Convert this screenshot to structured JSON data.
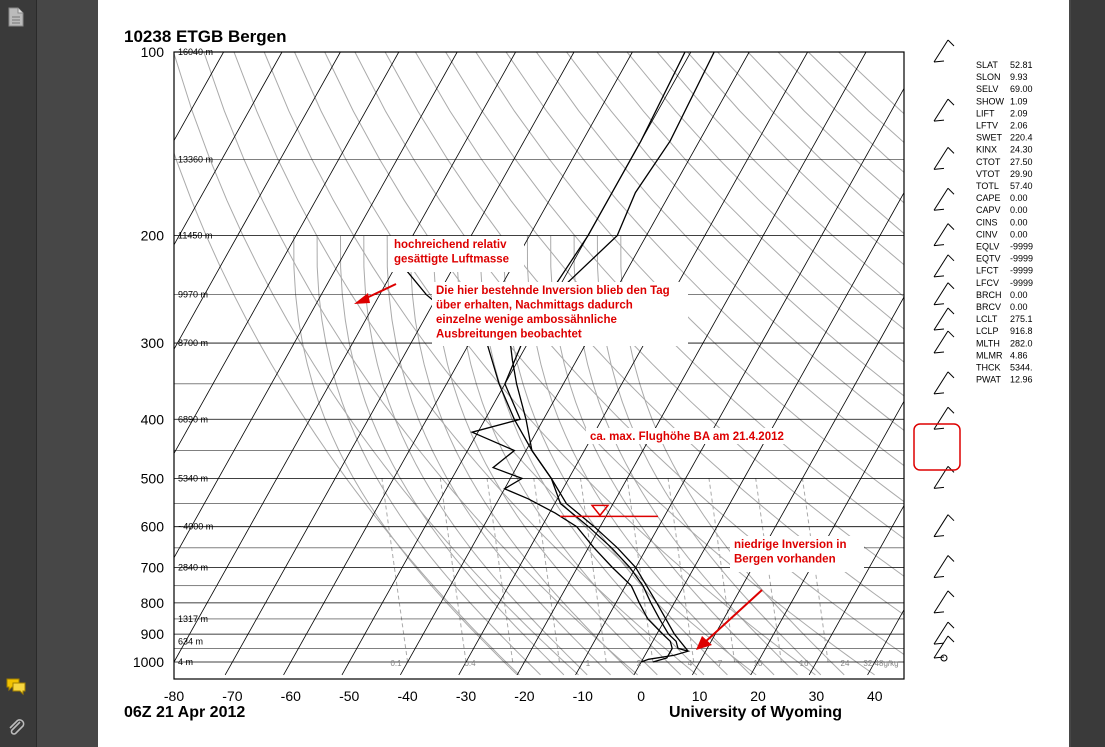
{
  "sidebar": {
    "icons": [
      "document-icon",
      "comments-icon",
      "attachment-icon"
    ]
  },
  "chart_data": {
    "type": "line",
    "title": "10238 ETGB Bergen",
    "date_label": "06Z 21 Apr 2012",
    "credit": "University of Wyoming",
    "xlim": [
      -80,
      45
    ],
    "x_ticks": [
      -80,
      -70,
      -60,
      -50,
      -40,
      -30,
      -20,
      -10,
      0,
      10,
      20,
      30,
      40
    ],
    "pressure_ticks": [
      100,
      200,
      300,
      400,
      500,
      600,
      700,
      800,
      900,
      1000
    ],
    "heights": [
      {
        "p": 100,
        "label": "16040 m"
      },
      {
        "p": 150,
        "label": "13360 m"
      },
      {
        "p": 200,
        "label": "11450 m"
      },
      {
        "p": 250,
        "label": "9970 m"
      },
      {
        "p": 300,
        "label": "8700 m"
      },
      {
        "p": 400,
        "label": "6890 m"
      },
      {
        "p": 500,
        "label": "5340 m"
      },
      {
        "p": 600,
        "label": "~4000 m"
      },
      {
        "p": 700,
        "label": "2840 m"
      },
      {
        "p": 850,
        "label": "1317 m"
      },
      {
        "p": 925,
        "label": "634 m"
      },
      {
        "p": 1000,
        "label": "4 m"
      }
    ],
    "mixing_labels": [
      "0.1",
      "0.4",
      "1",
      "2",
      "4",
      "7",
      "10",
      "16",
      "24",
      "32 48g/kg"
    ],
    "series": [
      {
        "label": "T",
        "points": [
          [
            100,
            -46
          ],
          [
            140,
            -45
          ],
          [
            170,
            -46
          ],
          [
            200,
            -45
          ],
          [
            250,
            -50
          ],
          [
            280,
            -52
          ],
          [
            300,
            -53
          ],
          [
            320,
            -51
          ],
          [
            350,
            -48
          ],
          [
            400,
            -43
          ],
          [
            450,
            -39
          ],
          [
            500,
            -33
          ],
          [
            550,
            -29
          ],
          [
            600,
            -22
          ],
          [
            650,
            -16
          ],
          [
            700,
            -11
          ],
          [
            750,
            -7
          ],
          [
            800,
            -4
          ],
          [
            850,
            -1
          ],
          [
            900,
            2
          ],
          [
            925,
            4
          ],
          [
            950,
            5
          ],
          [
            960,
            7
          ],
          [
            975,
            5
          ],
          [
            990,
            1
          ],
          [
            1000,
            0
          ]
        ]
      },
      {
        "label": "Td",
        "points": [
          [
            100,
            -51
          ],
          [
            140,
            -50
          ],
          [
            170,
            -50
          ],
          [
            200,
            -50
          ],
          [
            250,
            -51
          ],
          [
            300,
            -51
          ],
          [
            350,
            -50
          ],
          [
            400,
            -44
          ],
          [
            420,
            -51
          ],
          [
            450,
            -42
          ],
          [
            480,
            -44
          ],
          [
            500,
            -38
          ],
          [
            520,
            -40
          ],
          [
            540,
            -35
          ],
          [
            570,
            -29
          ],
          [
            600,
            -24
          ],
          [
            650,
            -19
          ],
          [
            700,
            -14
          ],
          [
            750,
            -9
          ],
          [
            800,
            -6
          ],
          [
            850,
            -3
          ],
          [
            900,
            1
          ],
          [
            925,
            3
          ],
          [
            950,
            4
          ],
          [
            970,
            4
          ],
          [
            985,
            4
          ],
          [
            1000,
            2
          ]
        ]
      },
      {
        "label": "parcel",
        "points": [
          [
            220,
            -80
          ],
          [
            250,
            -72
          ],
          [
            280,
            -63
          ],
          [
            300,
            -57
          ],
          [
            350,
            -51
          ],
          [
            400,
            -45
          ],
          [
            450,
            -39
          ],
          [
            500,
            -33
          ],
          [
            550,
            -28
          ],
          [
            600,
            -21
          ],
          [
            650,
            -15
          ],
          [
            700,
            -10
          ],
          [
            800,
            -3
          ],
          [
            900,
            3
          ],
          [
            960,
            7
          ]
        ]
      }
    ],
    "wind_barbs_p": [
      100,
      125,
      150,
      175,
      200,
      225,
      250,
      275,
      300,
      350,
      400,
      500,
      600,
      700,
      800,
      900,
      1000
    ],
    "indices": [
      {
        "name": "SLAT",
        "value": "52.81"
      },
      {
        "name": "SLON",
        "value": "9.93"
      },
      {
        "name": "SELV",
        "value": "69.00"
      },
      {
        "name": "SHOW",
        "value": "1.09"
      },
      {
        "name": "LIFT",
        "value": "2.09"
      },
      {
        "name": "LFTV",
        "value": "2.06"
      },
      {
        "name": "SWET",
        "value": "220.4"
      },
      {
        "name": "KINX",
        "value": "24.30"
      },
      {
        "name": "CTOT",
        "value": "27.50"
      },
      {
        "name": "VTOT",
        "value": "29.90"
      },
      {
        "name": "TOTL",
        "value": "57.40"
      },
      {
        "name": "CAPE",
        "value": "0.00"
      },
      {
        "name": "CAPV",
        "value": "0.00"
      },
      {
        "name": "CINS",
        "value": "0.00"
      },
      {
        "name": "CINV",
        "value": "0.00"
      },
      {
        "name": "EQLV",
        "value": "-9999"
      },
      {
        "name": "EQTV",
        "value": "-9999"
      },
      {
        "name": "LFCT",
        "value": "-9999"
      },
      {
        "name": "LFCV",
        "value": "-9999"
      },
      {
        "name": "BRCH",
        "value": "0.00"
      },
      {
        "name": "BRCV",
        "value": "0.00"
      },
      {
        "name": "LCLT",
        "value": "275.1"
      },
      {
        "name": "LCLP",
        "value": "916.8"
      },
      {
        "name": "MLTH",
        "value": "282.0"
      },
      {
        "name": "MLMR",
        "value": "4.86"
      },
      {
        "name": "THCK",
        "value": "5344."
      },
      {
        "name": "PWAT",
        "value": "12.96"
      }
    ],
    "annotations": [
      {
        "lines": [
          "hochreichend relativ",
          "gesättigte Luftmasse"
        ]
      },
      {
        "lines": [
          "Die hier bestehnde Inversion blieb den Tag",
          "über erhalten, Nachmittags dadurch",
          "einzelne wenige ambossähnliche",
          "Ausbreitungen beobachtet"
        ]
      },
      {
        "lines": [
          "ca. max. Flughöhe BA am 21.4.2012"
        ]
      },
      {
        "lines": [
          "niedrige Inversion in",
          "Bergen vorhanden"
        ]
      }
    ],
    "flight_level_p": 560,
    "colors": {
      "profile": "#000000",
      "grid": "#999999",
      "annotation": "#dd0000"
    }
  }
}
